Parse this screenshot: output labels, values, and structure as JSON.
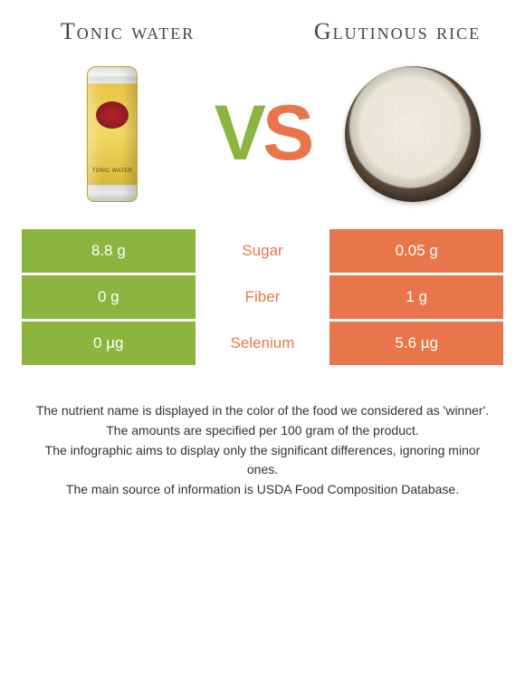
{
  "colors": {
    "left": "#8bb53f",
    "right": "#e8764a",
    "vs_v": "#8bb53f",
    "vs_s": "#e8764a",
    "background": "#ffffff",
    "title_text": "#444444",
    "note_text": "#333333"
  },
  "items": {
    "left": {
      "title": "Tonic water"
    },
    "right": {
      "title": "Glutinous rice"
    }
  },
  "vs": {
    "v": "V",
    "s": "S"
  },
  "rows": [
    {
      "name": "Sugar",
      "left": "8.8 g",
      "right": "0.05 g",
      "winner": "right"
    },
    {
      "name": "Fiber",
      "left": "0 g",
      "right": "1 g",
      "winner": "right"
    },
    {
      "name": "Selenium",
      "left": "0 µg",
      "right": "5.6 µg",
      "winner": "right"
    }
  ],
  "notes": [
    "The nutrient name is displayed in the color of the food we considered as 'winner'.",
    "The amounts are specified per 100 gram of the product.",
    "The infographic aims to display only the significant differences, ignoring minor ones.",
    "The main source of information is USDA Food Composition Database."
  ]
}
